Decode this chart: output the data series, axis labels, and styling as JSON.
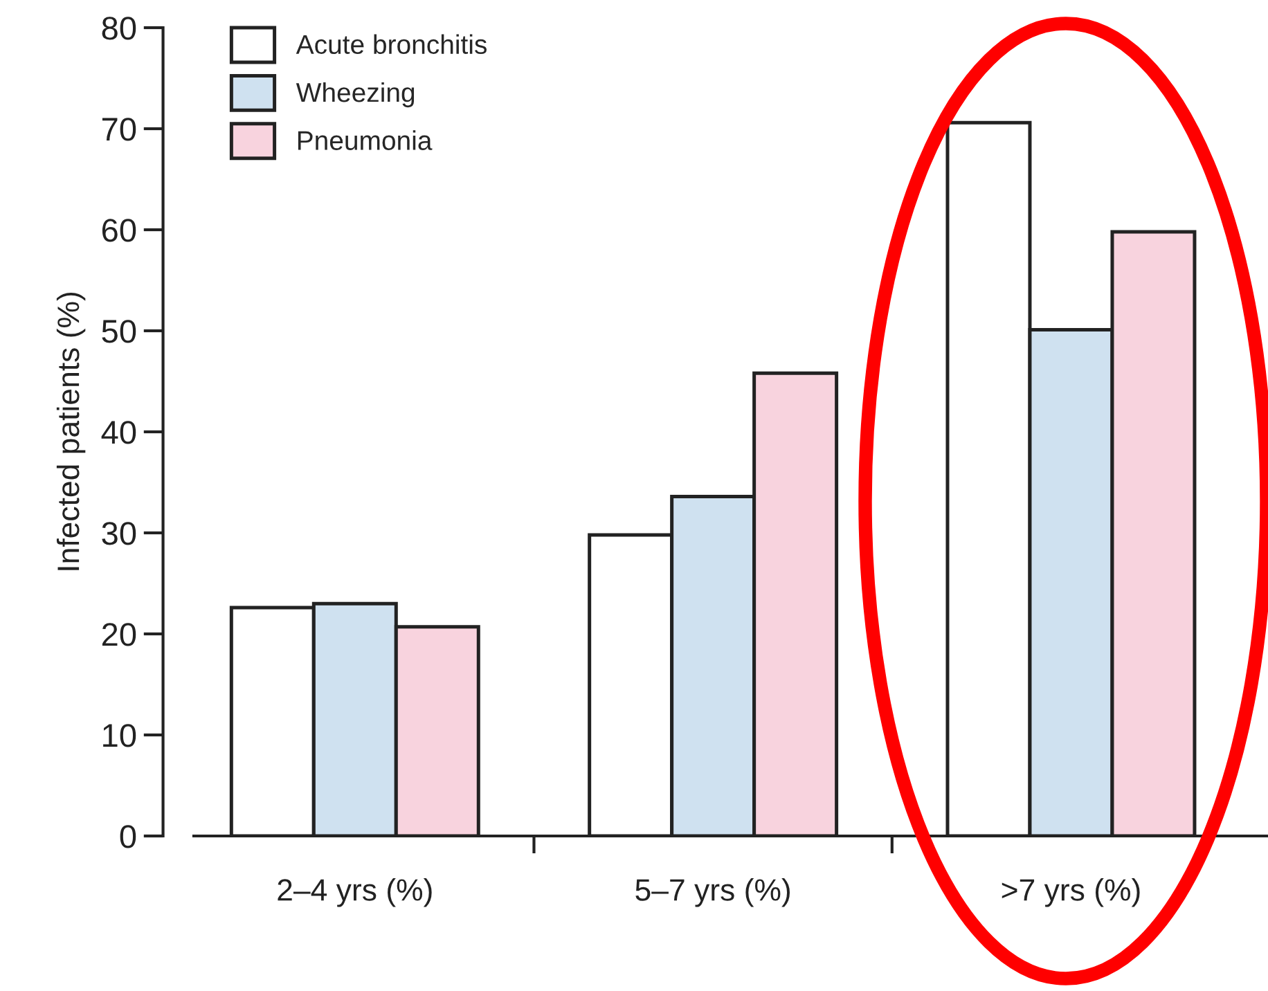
{
  "chart_data": {
    "type": "bar",
    "ylabel": "Infected patients (%)",
    "categories": [
      "2–4 yrs (%)",
      "5–7 yrs (%)",
      ">7 yrs (%)"
    ],
    "series": [
      {
        "name": "Acute bronchitis",
        "color": "#ffffff",
        "values": [
          22.6,
          29.8,
          70.6
        ]
      },
      {
        "name": "Wheezing",
        "color": "#cfe1f0",
        "values": [
          23.0,
          33.6,
          50.1
        ]
      },
      {
        "name": "Pneumonia",
        "color": "#f8d3de",
        "values": [
          20.7,
          45.8,
          59.8
        ]
      }
    ],
    "ylim": [
      0,
      80
    ],
    "yticks": [
      0,
      10,
      20,
      30,
      40,
      50,
      60,
      70,
      80
    ],
    "grid": false,
    "legend": "top left"
  }
}
